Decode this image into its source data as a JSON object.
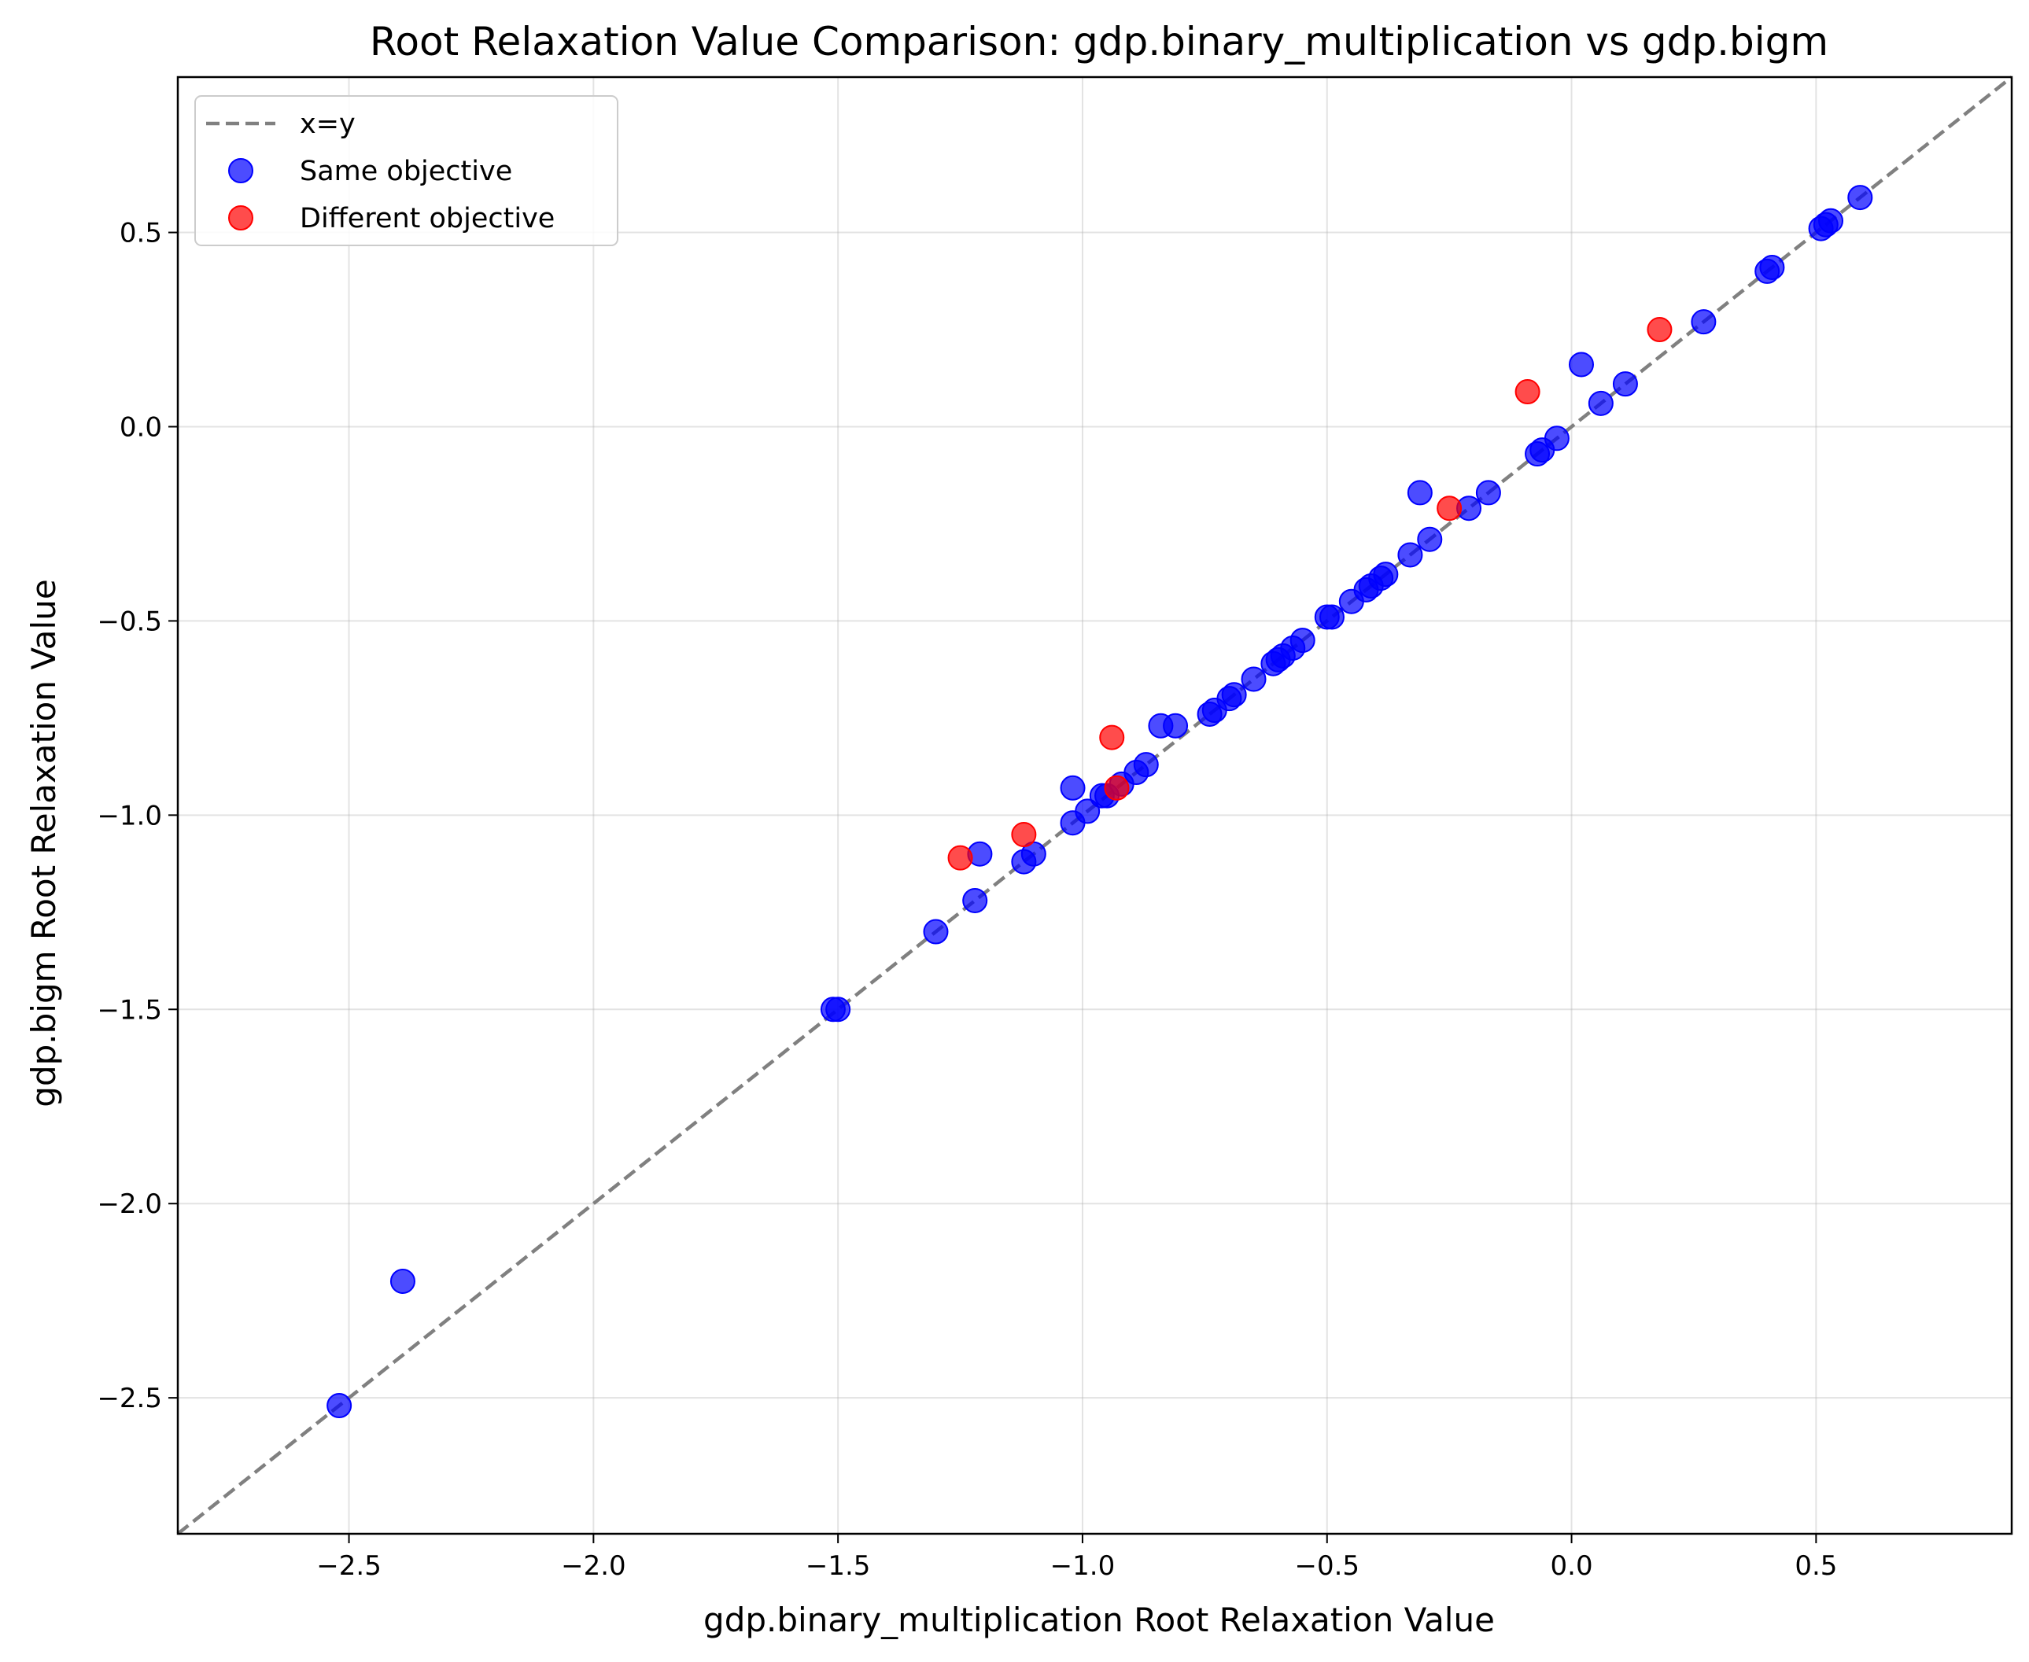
{
  "chart_data": {
    "type": "scatter",
    "title": "Root Relaxation Value Comparison: gdp.binary_multiplication vs gdp.bigm",
    "xlabel": "gdp.binary_multiplication Root Relaxation Value",
    "ylabel": "gdp.bigm Root Relaxation Value",
    "xlim": [
      -2.85,
      0.9
    ],
    "ylim": [
      -2.85,
      0.9
    ],
    "xticks": [
      -2.5,
      -2.0,
      -1.5,
      -1.0,
      -0.5,
      0.0,
      0.5
    ],
    "yticks": [
      -2.5,
      -2.0,
      -1.5,
      -1.0,
      -0.5,
      0.0,
      0.5
    ],
    "xtick_labels": [
      "−2.5",
      "−2.0",
      "−1.5",
      "−1.0",
      "−0.5",
      "0.0",
      "0.5"
    ],
    "ytick_labels": [
      "−2.5",
      "−2.0",
      "−1.5",
      "−1.0",
      "−0.5",
      "0.0",
      "0.5"
    ],
    "grid": true,
    "legend_position": "top-left",
    "reference_line": {
      "name": "x=y",
      "style": "dashed",
      "color": "#808080"
    },
    "series": [
      {
        "name": "Same objective",
        "color": "#0000ff",
        "points": [
          [
            -2.52,
            -2.52
          ],
          [
            -2.39,
            -2.2
          ],
          [
            -1.51,
            -1.5
          ],
          [
            -1.5,
            -1.5
          ],
          [
            -1.3,
            -1.3
          ],
          [
            -1.22,
            -1.22
          ],
          [
            -1.21,
            -1.1
          ],
          [
            -1.12,
            -1.12
          ],
          [
            -1.1,
            -1.1
          ],
          [
            -1.02,
            -0.93
          ],
          [
            -1.02,
            -1.02
          ],
          [
            -0.99,
            -0.99
          ],
          [
            -0.96,
            -0.95
          ],
          [
            -0.95,
            -0.95
          ],
          [
            -0.92,
            -0.92
          ],
          [
            -0.89,
            -0.89
          ],
          [
            -0.87,
            -0.87
          ],
          [
            -0.84,
            -0.77
          ],
          [
            -0.81,
            -0.77
          ],
          [
            -0.74,
            -0.74
          ],
          [
            -0.73,
            -0.73
          ],
          [
            -0.7,
            -0.7
          ],
          [
            -0.69,
            -0.69
          ],
          [
            -0.65,
            -0.65
          ],
          [
            -0.61,
            -0.61
          ],
          [
            -0.6,
            -0.6
          ],
          [
            -0.59,
            -0.59
          ],
          [
            -0.57,
            -0.57
          ],
          [
            -0.55,
            -0.55
          ],
          [
            -0.5,
            -0.49
          ],
          [
            -0.49,
            -0.49
          ],
          [
            -0.45,
            -0.45
          ],
          [
            -0.42,
            -0.42
          ],
          [
            -0.41,
            -0.41
          ],
          [
            -0.39,
            -0.39
          ],
          [
            -0.38,
            -0.38
          ],
          [
            -0.33,
            -0.33
          ],
          [
            -0.31,
            -0.17
          ],
          [
            -0.29,
            -0.29
          ],
          [
            -0.21,
            -0.21
          ],
          [
            -0.17,
            -0.17
          ],
          [
            -0.07,
            -0.07
          ],
          [
            -0.06,
            -0.06
          ],
          [
            -0.03,
            -0.03
          ],
          [
            0.02,
            0.16
          ],
          [
            0.06,
            0.06
          ],
          [
            0.11,
            0.11
          ],
          [
            0.27,
            0.27
          ],
          [
            0.4,
            0.4
          ],
          [
            0.41,
            0.41
          ],
          [
            0.51,
            0.51
          ],
          [
            0.52,
            0.52
          ],
          [
            0.53,
            0.53
          ],
          [
            0.59,
            0.59
          ]
        ]
      },
      {
        "name": "Different objective",
        "color": "#ff0000",
        "points": [
          [
            -1.25,
            -1.11
          ],
          [
            -1.12,
            -1.05
          ],
          [
            -0.94,
            -0.8
          ],
          [
            -0.93,
            -0.93
          ],
          [
            -0.25,
            -0.21
          ],
          [
            -0.09,
            0.09
          ],
          [
            0.18,
            0.25
          ]
        ]
      }
    ]
  }
}
